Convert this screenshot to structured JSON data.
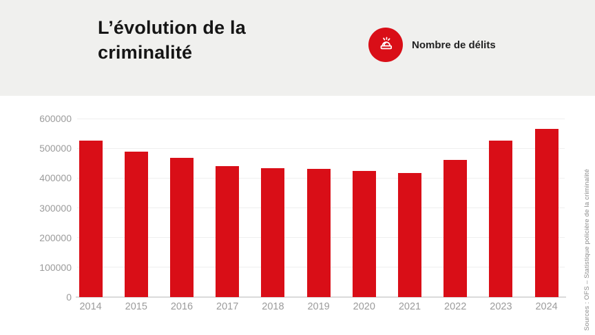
{
  "header": {
    "title_lines": [
      "L’évolution de la",
      "criminalité"
    ],
    "legend": {
      "label": "Nombre de délits",
      "icon": "siren-icon",
      "badge_color": "#d90e17"
    }
  },
  "source_note": "Sources : OFS – Statistique policière de la criminalité",
  "colors": {
    "accent_red": "#d90e17",
    "header_band": "#f0f0ee",
    "gridline": "#efefef",
    "axis_line": "#dadada",
    "tick_text": "#9b9b9b",
    "title_text": "#151515",
    "source_text": "#8b8b8b"
  },
  "chart_data": {
    "type": "bar",
    "title": "L’évolution de la criminalité",
    "legend_entries": [
      "Nombre de délits"
    ],
    "legend_position": "top",
    "categories": [
      "2014",
      "2015",
      "2016",
      "2017",
      "2018",
      "2019",
      "2020",
      "2021",
      "2022",
      "2023",
      "2024"
    ],
    "values": [
      527000,
      489000,
      467000,
      441000,
      434000,
      431000,
      424000,
      417000,
      461000,
      525000,
      566000
    ],
    "xlabel": "",
    "ylabel": "",
    "ylim": [
      0,
      600000
    ],
    "ytick_values": [
      0,
      100000,
      200000,
      300000,
      400000,
      500000,
      600000
    ],
    "ytick_labels": [
      "0",
      "100000",
      "200000",
      "300000",
      "400000",
      "500000",
      "600000"
    ],
    "grid": true,
    "bar_color": "#d90e17"
  }
}
